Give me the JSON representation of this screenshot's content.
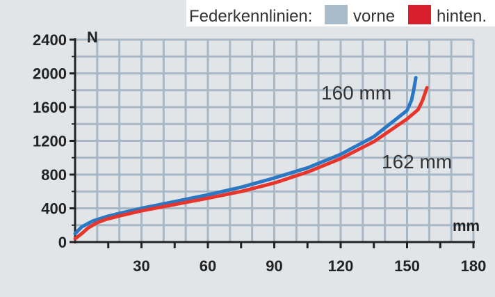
{
  "legend": {
    "title": "Federkennlinien:",
    "items": [
      {
        "label": "vorne",
        "color": "#a9bccb"
      },
      {
        "label": "hinten.",
        "color": "#d71e2b"
      }
    ]
  },
  "chart_data": {
    "type": "line",
    "ylabel": "N",
    "xlabel": "mm",
    "xlim": [
      0,
      180
    ],
    "ylim": [
      0,
      2400
    ],
    "x_ticks": [
      30,
      60,
      90,
      120,
      150,
      180
    ],
    "y_ticks": [
      0,
      400,
      800,
      1200,
      1600,
      2000,
      2400
    ],
    "grid": true,
    "series": [
      {
        "name": "vorne",
        "line_color": "#2a77c4",
        "annotation": "160 mm",
        "points": [
          [
            0,
            100
          ],
          [
            3,
            180
          ],
          [
            8,
            250
          ],
          [
            14,
            300
          ],
          [
            20,
            340
          ],
          [
            30,
            400
          ],
          [
            45,
            480
          ],
          [
            60,
            560
          ],
          [
            75,
            650
          ],
          [
            90,
            760
          ],
          [
            105,
            880
          ],
          [
            120,
            1040
          ],
          [
            135,
            1250
          ],
          [
            150,
            1560
          ],
          [
            152,
            1680
          ],
          [
            153,
            1800
          ],
          [
            154,
            1950
          ]
        ]
      },
      {
        "name": "hinten",
        "line_color": "#e8352b",
        "annotation": "162 mm",
        "points": [
          [
            0,
            40
          ],
          [
            3,
            100
          ],
          [
            6,
            170
          ],
          [
            10,
            230
          ],
          [
            14,
            270
          ],
          [
            20,
            310
          ],
          [
            30,
            370
          ],
          [
            45,
            445
          ],
          [
            60,
            520
          ],
          [
            75,
            600
          ],
          [
            90,
            700
          ],
          [
            105,
            830
          ],
          [
            120,
            990
          ],
          [
            135,
            1190
          ],
          [
            150,
            1460
          ],
          [
            155,
            1570
          ],
          [
            157,
            1680
          ],
          [
            159,
            1830
          ]
        ]
      }
    ]
  }
}
